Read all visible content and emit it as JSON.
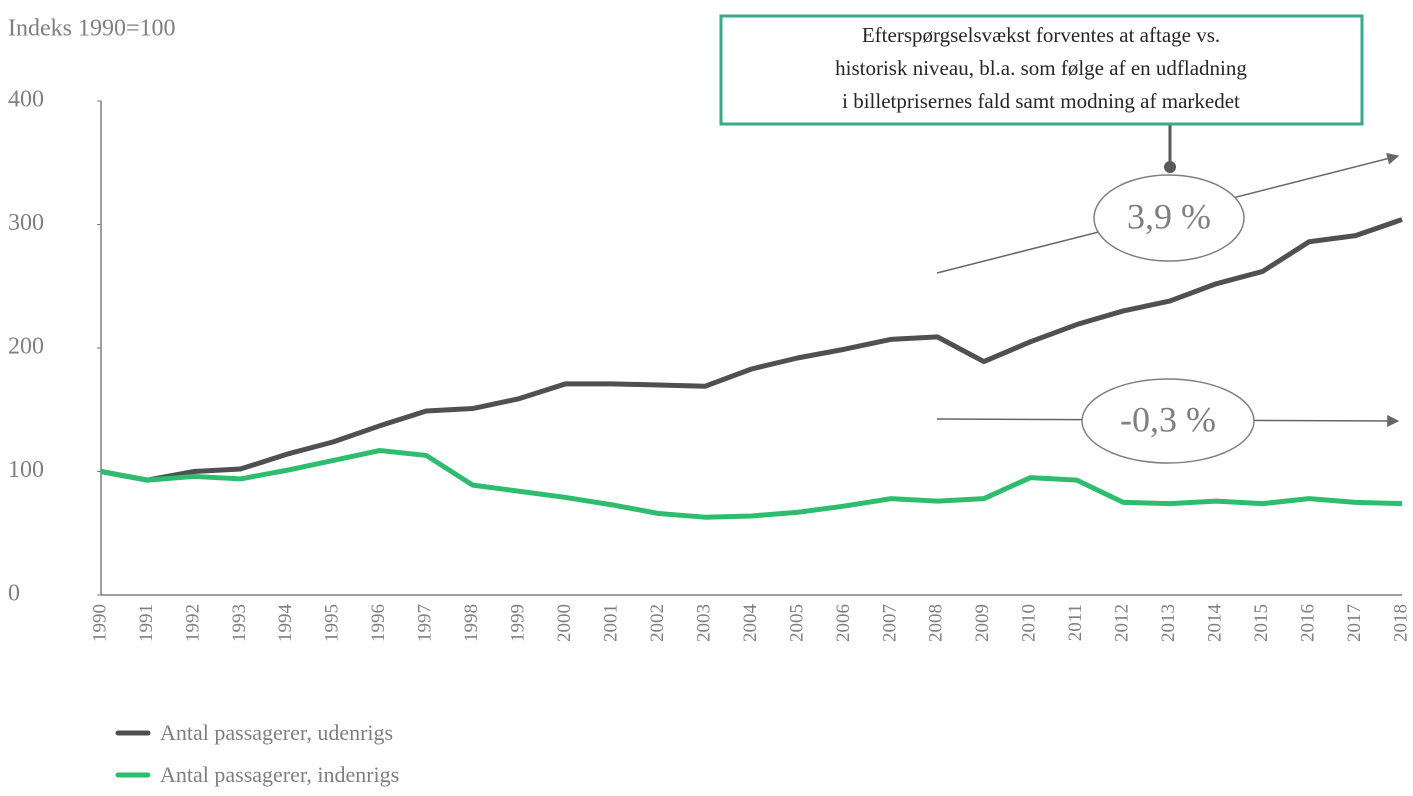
{
  "chart_data": {
    "type": "line",
    "ylabel": "Indeks 1990=100",
    "categories": [
      "1990",
      "1991",
      "1992",
      "1993",
      "1994",
      "1995",
      "1996",
      "1997",
      "1998",
      "1999",
      "2000",
      "2001",
      "2002",
      "2003",
      "2004",
      "2005",
      "2006",
      "2007",
      "2008",
      "2009",
      "2010",
      "2011",
      "2012",
      "2013",
      "2014",
      "2015",
      "2016",
      "2017",
      "2018"
    ],
    "series": [
      {
        "name": "Antal passagerer, udenrigs",
        "color": "#505050",
        "values": [
          100,
          93,
          100,
          102,
          114,
          124,
          137,
          149,
          151,
          159,
          171,
          171,
          170,
          169,
          183,
          192,
          199,
          207,
          209,
          189,
          205,
          219,
          230,
          238,
          252,
          262,
          286,
          291,
          304
        ]
      },
      {
        "name": "Antal passagerer, indenrigs",
        "color": "#2ebd6e",
        "values": [
          100,
          93,
          96,
          94,
          101,
          109,
          117,
          113,
          89,
          84,
          79,
          73,
          66,
          63,
          64,
          67,
          72,
          78,
          76,
          78,
          95,
          93,
          75,
          74,
          76,
          74,
          78,
          75,
          74
        ]
      }
    ],
    "ylim": [
      0,
      400
    ],
    "yticks": [
      0,
      100,
      200,
      300,
      400
    ],
    "annotations": {
      "note": [
        "Efterspørgselsvækst forventes at aftage vs.",
        "historisk niveau, bl.a. som følge af en udfladning",
        "i billetprisernes fald samt modning af markedet"
      ],
      "growth_udenrigs": "3,9 %",
      "growth_indenrigs": "-0,3 %"
    }
  }
}
